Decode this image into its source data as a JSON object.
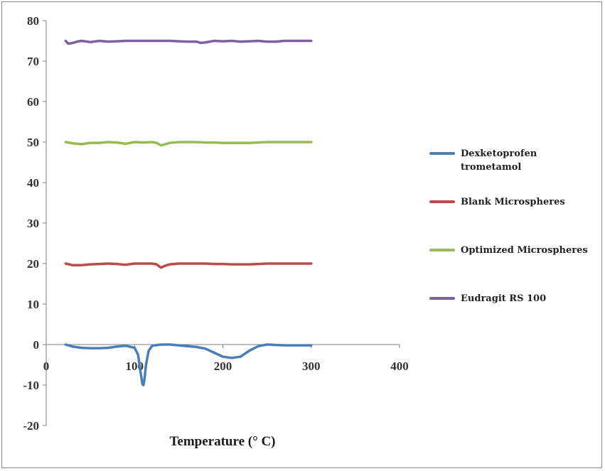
{
  "chart_data": {
    "type": "line",
    "title": "",
    "xlabel": "Temperature  (° C)",
    "ylabel": "",
    "xlim": [
      0,
      400
    ],
    "ylim": [
      -20,
      80
    ],
    "xticks": [
      "0",
      "100",
      "200",
      "300",
      "400"
    ],
    "yticks": [
      "-20",
      "-10",
      "0",
      "10",
      "20",
      "30",
      "40",
      "50",
      "60",
      "70",
      "80"
    ],
    "grid": false,
    "legend_position": "right",
    "series": [
      {
        "name": "Dexketoprofen trometamol",
        "legend_lines": [
          "Dexketoprofen",
          "trometamol"
        ],
        "color": "#4a7ebb",
        "x": [
          22,
          30,
          40,
          50,
          60,
          70,
          80,
          90,
          100,
          104,
          107,
          109,
          110,
          111,
          113,
          116,
          120,
          130,
          140,
          150,
          160,
          170,
          180,
          190,
          200,
          210,
          220,
          230,
          240,
          250,
          260,
          270,
          280,
          290,
          300
        ],
        "y": [
          0,
          -0.5,
          -0.8,
          -0.9,
          -0.9,
          -0.8,
          -0.5,
          -0.3,
          -0.8,
          -2.5,
          -7,
          -9.8,
          -10,
          -9,
          -5,
          -1.5,
          -0.3,
          0,
          0,
          -0.2,
          -0.4,
          -0.6,
          -1,
          -2,
          -3,
          -3.3,
          -3,
          -1.5,
          -0.4,
          0,
          -0.1,
          -0.2,
          -0.2,
          -0.2,
          -0.2
        ]
      },
      {
        "name": "Blank Microspheres",
        "legend_lines": [
          "Blank Microspheres"
        ],
        "color": "#be4b48",
        "x": [
          22,
          30,
          40,
          50,
          60,
          70,
          80,
          90,
          100,
          110,
          120,
          125,
          130,
          135,
          140,
          150,
          160,
          170,
          180,
          190,
          200,
          210,
          220,
          230,
          240,
          250,
          260,
          270,
          280,
          290,
          300
        ],
        "y": [
          20,
          19.6,
          19.6,
          19.8,
          19.9,
          20,
          19.9,
          19.7,
          20,
          20,
          20,
          19.8,
          19,
          19.5,
          19.8,
          20,
          20,
          20,
          20,
          19.9,
          19.9,
          19.8,
          19.8,
          19.8,
          19.9,
          20,
          20,
          20,
          20,
          20,
          20
        ]
      },
      {
        "name": "Optimized Microspheres",
        "legend_lines": [
          "Optimized Microspheres"
        ],
        "color": "#98b954",
        "x": [
          22,
          30,
          40,
          50,
          60,
          70,
          80,
          90,
          100,
          110,
          120,
          125,
          130,
          135,
          140,
          150,
          160,
          170,
          180,
          190,
          200,
          210,
          220,
          230,
          240,
          250,
          260,
          270,
          280,
          290,
          300
        ],
        "y": [
          50,
          49.7,
          49.5,
          49.8,
          49.8,
          50,
          49.9,
          49.6,
          50,
          49.9,
          50,
          49.8,
          49.2,
          49.5,
          49.8,
          50,
          50,
          50,
          49.9,
          49.9,
          49.8,
          49.8,
          49.8,
          49.8,
          49.9,
          50,
          50,
          50,
          50,
          50,
          50
        ]
      },
      {
        "name": "Eudragit RS 100",
        "legend_lines": [
          "Eudragit RS 100"
        ],
        "color": "#7d60a0",
        "x": [
          22,
          25,
          30,
          35,
          40,
          50,
          60,
          70,
          80,
          90,
          100,
          110,
          120,
          130,
          140,
          150,
          160,
          170,
          175,
          180,
          190,
          200,
          210,
          220,
          230,
          240,
          250,
          260,
          270,
          280,
          290,
          300
        ],
        "y": [
          75,
          74.3,
          74.5,
          74.8,
          75,
          74.7,
          75,
          74.8,
          74.9,
          75,
          75,
          75,
          75,
          75,
          75,
          74.9,
          74.8,
          74.8,
          74.5,
          74.6,
          75,
          74.9,
          75,
          74.8,
          74.9,
          75,
          74.8,
          74.8,
          75,
          75,
          75,
          75
        ]
      }
    ]
  }
}
